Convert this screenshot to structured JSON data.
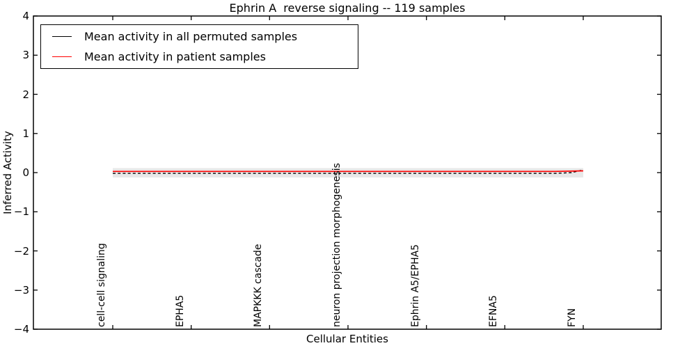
{
  "title": "Ephrin A  reverse signaling -- 119 samples",
  "legend": {
    "items": [
      {
        "label": "Mean activity in all permuted samples",
        "color": "#000000",
        "style": "solid"
      },
      {
        "label": "Mean activity in patient samples",
        "color": "#ff0000",
        "style": "solid"
      }
    ]
  },
  "colors": {
    "permuted_line": "#000000",
    "patient_line": "#ff0000",
    "confidence_band": "#e8e8e8",
    "axes": "#000000",
    "background": "#ffffff"
  },
  "chart_data": {
    "type": "line",
    "title": "Ephrin A  reverse signaling -- 119 samples",
    "xlabel": "Cellular Entities",
    "ylabel": "Inferred Activity",
    "ylim": [
      -4,
      4
    ],
    "ytick_labels": [
      "4",
      "3",
      "2",
      "1",
      "0",
      "−1",
      "−2",
      "−3",
      "−4"
    ],
    "categories": [
      "cell-cell signaling",
      "EPHA5",
      "MAPKKK cascade",
      "neuron projection morphogenesis",
      "Ephrin A5/EPHA5",
      "EFNA5",
      "FYN"
    ],
    "grid": false,
    "legend_position": "upper left",
    "xticklabel_rotation": 90,
    "series": [
      {
        "name": "Mean activity in all permuted samples",
        "color": "#000000",
        "line_style": "dashed",
        "points": [
          [
            0.0,
            -0.02
          ],
          [
            0.2,
            -0.02
          ],
          [
            0.4,
            -0.02
          ],
          [
            0.6,
            -0.02
          ],
          [
            0.8,
            -0.02
          ],
          [
            0.94,
            -0.02
          ],
          [
            0.975,
            0.0
          ],
          [
            1.0,
            0.07
          ]
        ]
      },
      {
        "name": "Mean activity in patient samples",
        "color": "#ff0000",
        "line_style": "solid",
        "points": [
          [
            0.0,
            0.03
          ],
          [
            0.2,
            0.03
          ],
          [
            0.4,
            0.03
          ],
          [
            0.6,
            0.03
          ],
          [
            0.8,
            0.03
          ],
          [
            0.94,
            0.03
          ],
          [
            1.0,
            0.045
          ]
        ]
      }
    ],
    "band": {
      "upper": 0.115,
      "lower": -0.125,
      "color": "#e8e8e8"
    }
  }
}
